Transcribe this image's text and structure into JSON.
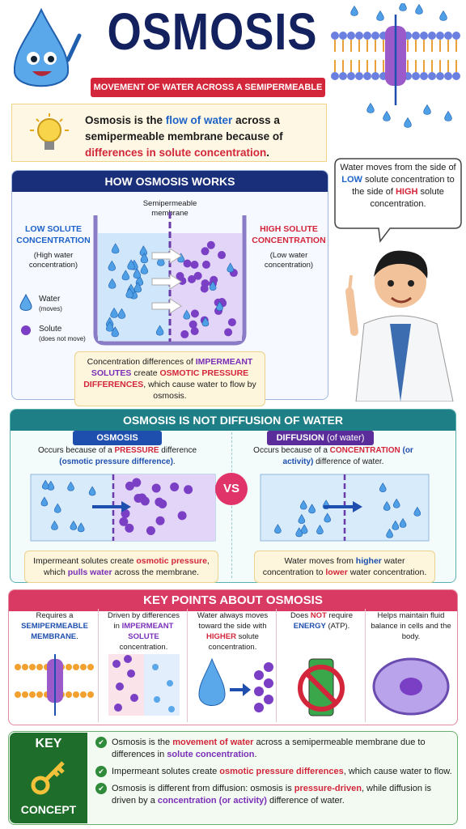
{
  "header": {
    "title": "OSMOSIS",
    "subtitle": "MOVEMENT OF WATER ACROSS A SEMIPERMEABLE MEMBRANE"
  },
  "intro": [
    "Osmosis is the ",
    "flow of water",
    " across a semipermeable membrane because of ",
    "differences in solute concentration",
    "."
  ],
  "how_it_works": {
    "title": "HOW OSMOSIS WORKS",
    "membrane_label": "Semipermeable membrane",
    "left_title": "LOW SOLUTE CONCENTRATION",
    "left_sub": "(High water concentration)",
    "right_title": "HIGH SOLUTE CONCENTRATION",
    "right_sub": "(Low water concentration)",
    "water": "Water",
    "water_note": "(moves)",
    "solute": "Solute",
    "solute_note": "(does not move)",
    "note": [
      "Concentration differences of ",
      "IMPERMEANT SOLUTES",
      " create ",
      "OSMOTIC PRESSURE DIFFERENCES",
      ", which cause water to flow by osmosis."
    ]
  },
  "speech": [
    "Water moves from the side of ",
    "LOW",
    " solute concentration to the side of ",
    "HIGH",
    " solute concentration."
  ],
  "comparison": {
    "title": "OSMOSIS IS NOT DIFFUSION OF WATER",
    "vs": "VS",
    "osmosis": {
      "label": "OSMOSIS",
      "desc": [
        "Occurs because of a ",
        "PRESSURE",
        " difference ",
        "(osmotic pressure difference)",
        "."
      ],
      "note": [
        "Impermeant solutes create ",
        "osmotic pressure",
        ", which ",
        "pulls water",
        " across the membrane."
      ]
    },
    "diffusion": {
      "label": "DIFFUSION",
      "label_sub": "(of water)",
      "desc": [
        "Occurs because of a ",
        "CONCENTRATION",
        " ",
        "(or activity)",
        " difference of water."
      ],
      "note": [
        "Water moves from ",
        "higher",
        " water concentration to ",
        "lower",
        " water concentration."
      ]
    }
  },
  "key_points": {
    "title": "KEY POINTS ABOUT OSMOSIS",
    "items": [
      [
        "Requires a ",
        "SEMIPERMEABLE MEMBRANE",
        "."
      ],
      [
        "Driven by differences in ",
        "IMPERMEANT SOLUTE",
        " concentration."
      ],
      [
        "Water always moves toward the side with ",
        "HIGHER",
        " solute concentration."
      ],
      [
        "Does ",
        "NOT",
        " require ",
        "ENERGY",
        " (ATP)."
      ],
      [
        "Helps maintain fluid balance in cells and the body."
      ]
    ]
  },
  "key_concept": {
    "label": "KEY",
    "label2": "CONCEPT",
    "bullets": [
      [
        "Osmosis is the ",
        "movement of water",
        " across a semipermeable membrane due to differences in ",
        "solute concentration",
        "."
      ],
      [
        "Impermeant solutes create ",
        "osmotic pressure differences",
        ", which cause water to flow."
      ],
      [
        "Osmosis is different from diffusion: osmosis is ",
        "pressure-driven",
        ", while diffusion is driven by a ",
        "concentration (or activity)",
        " difference of water."
      ]
    ]
  }
}
